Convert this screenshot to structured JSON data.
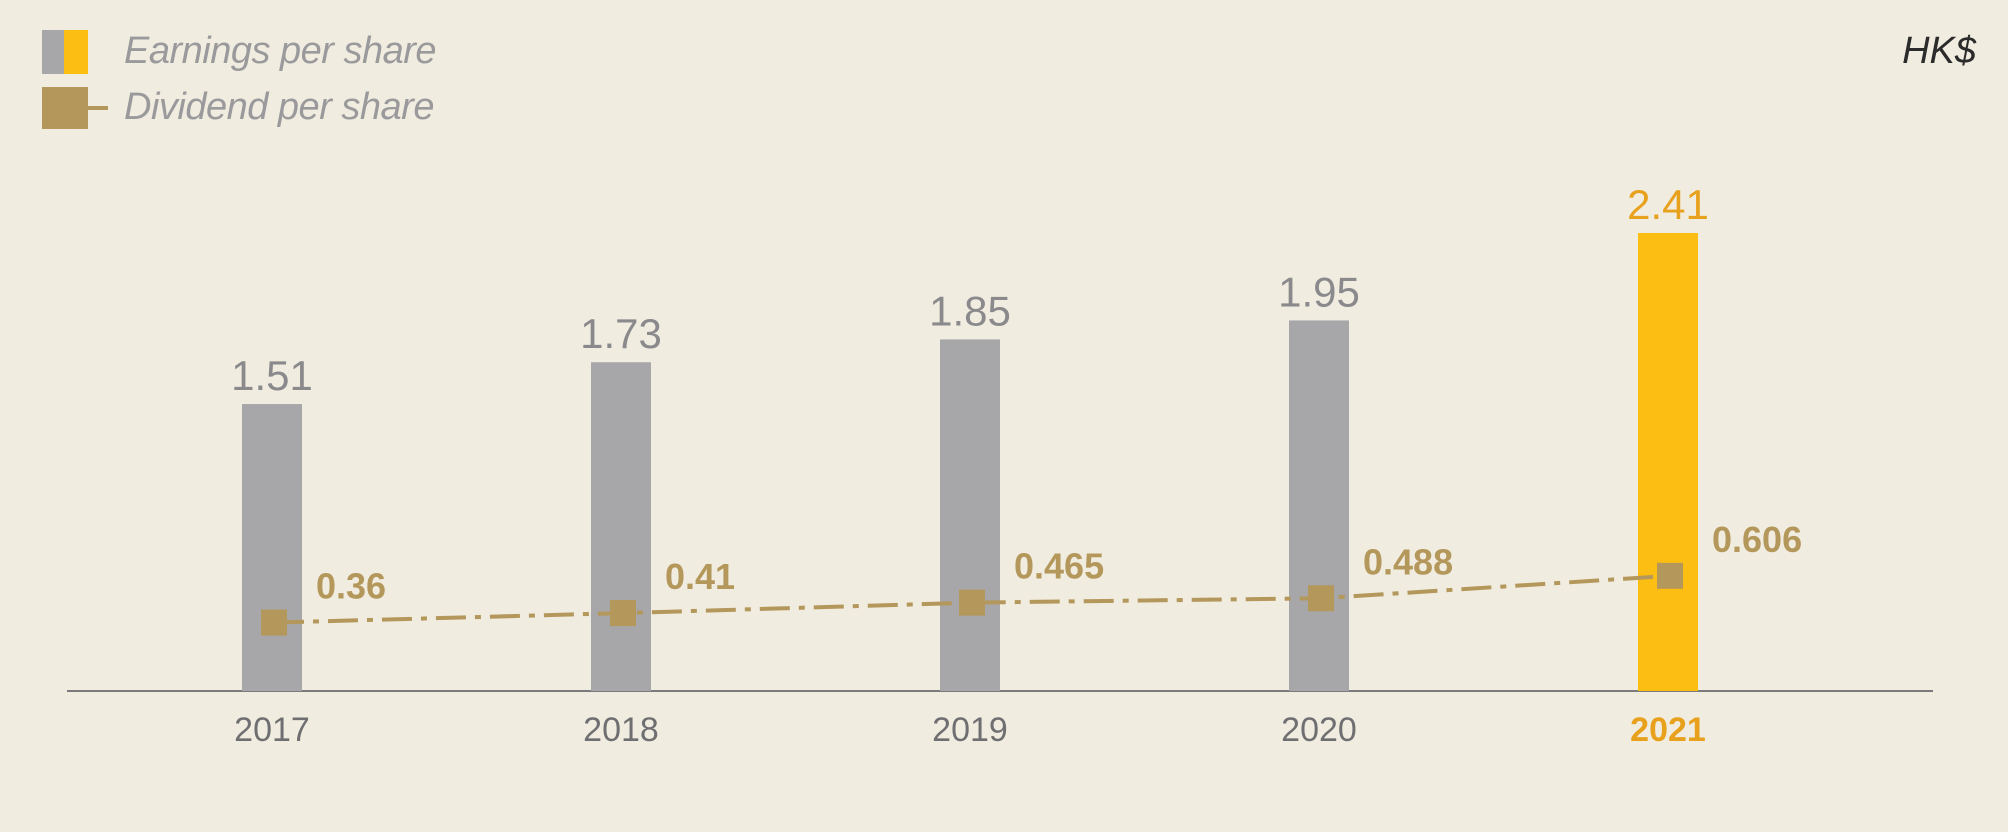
{
  "chart_data": {
    "type": "bar",
    "unit": "HK$",
    "categories": [
      "2017",
      "2018",
      "2019",
      "2020",
      "2021"
    ],
    "series": [
      {
        "name": "Earnings per share",
        "type": "bar",
        "values": [
          1.51,
          1.73,
          1.85,
          1.95,
          2.41
        ],
        "labels": [
          "1.51",
          "1.73",
          "1.85",
          "1.95",
          "2.41"
        ],
        "colors": [
          "#a7a7aa",
          "#a7a7aa",
          "#a7a7aa",
          "#a7a7aa",
          "#fdbe13"
        ]
      },
      {
        "name": "Dividend per share",
        "type": "line",
        "values": [
          0.36,
          0.41,
          0.465,
          0.488,
          0.606
        ],
        "labels": [
          "0.36",
          "0.41",
          "0.465",
          "0.488",
          "0.606"
        ],
        "color": "#b4975a",
        "line_style": "dash-dot"
      }
    ],
    "highlight_category": "2021",
    "highlight_color": "#e8a11c",
    "ylim": [
      0,
      2.41
    ],
    "grid": false,
    "legend_position": "top-left"
  },
  "legend": {
    "earnings_label": "Earnings per share",
    "dividend_label": "Dividend per share"
  },
  "unit_label": "HK$"
}
